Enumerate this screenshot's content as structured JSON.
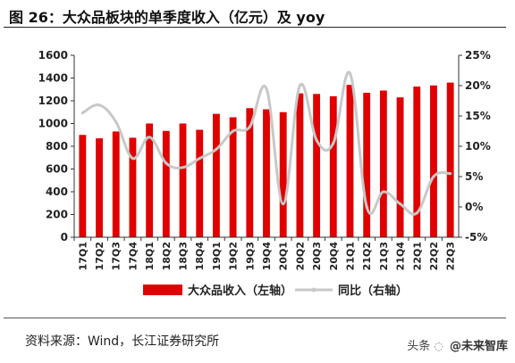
{
  "header": {
    "title": "图 26：大众品板块的单季度收入（亿元）及 yoy"
  },
  "footer": {
    "source": "资料来源：Wind，长江证券研究所",
    "watermark_prefix": "头条",
    "watermark_brand": "@未来智库"
  },
  "colors": {
    "bar": "#e00000",
    "line": "#c8c8c8",
    "axis": "#333333"
  },
  "chart_data": {
    "type": "bar",
    "categories": [
      "17Q1",
      "17Q2",
      "17Q3",
      "17Q4",
      "18Q1",
      "18Q2",
      "18Q3",
      "18Q4",
      "19Q1",
      "19Q2",
      "19Q3",
      "19Q4",
      "20Q1",
      "20Q2",
      "20Q3",
      "20Q4",
      "21Q1",
      "21Q2",
      "21Q3",
      "21Q4",
      "22Q1",
      "22Q2",
      "22Q3"
    ],
    "series": [
      {
        "name": "大众品收入（左轴）",
        "type": "bar",
        "axis": "left",
        "values": [
          900,
          870,
          930,
          875,
          1000,
          935,
          1000,
          945,
          1085,
          1055,
          1135,
          1125,
          1100,
          1265,
          1260,
          1240,
          1340,
          1270,
          1290,
          1230,
          1325,
          1335,
          1360
        ]
      },
      {
        "name": "同比（右轴）",
        "type": "line",
        "axis": "right",
        "values": [
          15.5,
          16.8,
          14.0,
          8.0,
          11.5,
          7.2,
          6.5,
          8.0,
          9.5,
          12.5,
          13.2,
          19.5,
          0.5,
          20.0,
          11.0,
          10.5,
          22.0,
          0.0,
          2.5,
          0.5,
          -1.0,
          5.0,
          5.5
        ]
      }
    ],
    "yleft": {
      "ticks": [
        "0",
        "200",
        "400",
        "600",
        "800",
        "1000",
        "1200",
        "1400",
        "1600"
      ],
      "range": [
        0,
        1600
      ]
    },
    "yright": {
      "ticks": [
        "-5%",
        "0%",
        "5%",
        "10%",
        "15%",
        "20%",
        "25%"
      ],
      "range": [
        -5,
        25
      ]
    },
    "legend_position": "bottom",
    "grid": false
  }
}
